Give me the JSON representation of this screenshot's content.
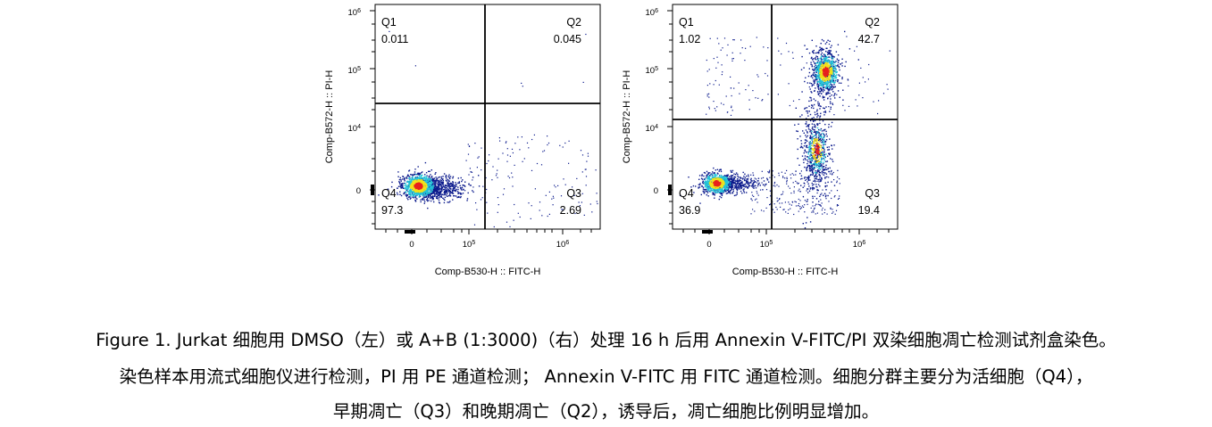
{
  "chart_data": [
    {
      "type": "scatter",
      "title": "",
      "xlabel": "Comp-B530-H :: FITC-H",
      "ylabel": "Comp-B572-H :: PI-H",
      "x_ticks": [
        "0",
        "10^5",
        "10^6"
      ],
      "y_ticks": [
        "0",
        "10^4",
        "10^5",
        "10^6"
      ],
      "gate_x": "2.0e5",
      "gate_y": "2.2e4",
      "quadrants": [
        {
          "name": "Q1",
          "percent": "0.011"
        },
        {
          "name": "Q2",
          "percent": "0.045"
        },
        {
          "name": "Q3",
          "percent": "2.69"
        },
        {
          "name": "Q4",
          "percent": "97.3"
        }
      ],
      "condition": "DMSO"
    },
    {
      "type": "scatter",
      "title": "",
      "xlabel": "Comp-B530-H :: FITC-H",
      "ylabel": "Comp-B572-H :: PI-H",
      "x_ticks": [
        "0",
        "10^5",
        "10^6"
      ],
      "y_ticks": [
        "0",
        "10^4",
        "10^5",
        "10^6"
      ],
      "gate_x": "1.0e5",
      "gate_y": "1.2e4",
      "quadrants": [
        {
          "name": "Q1",
          "percent": "1.02"
        },
        {
          "name": "Q2",
          "percent": "42.7"
        },
        {
          "name": "Q3",
          "percent": "19.4"
        },
        {
          "name": "Q4",
          "percent": "36.9"
        }
      ],
      "condition": "A+B (1:3000)"
    }
  ],
  "colors": {
    "density_low": "#0b1a8c",
    "density_mid": "#22c4d8",
    "density_high_mid": "#f2e21a",
    "density_peak": "#e8211c",
    "gate_line": "#000000"
  },
  "caption": {
    "line1": "Figure 1. Jurkat 细胞用 DMSO（左）或 A+B (1:3000)（右）处理 16 h 后用 Annexin V-FITC/PI 双染细胞凋亡检测试剂盒染色。",
    "line2": "染色样本用流式细胞仪进行检测，PI 用 PE 通道检测；  Annexin V-FITC 用 FITC 通道检测。细胞分群主要分为活细胞（Q4），",
    "line3": "早期凋亡（Q3）和晚期凋亡（Q2），诱导后，凋亡细胞比例明显增加。"
  }
}
